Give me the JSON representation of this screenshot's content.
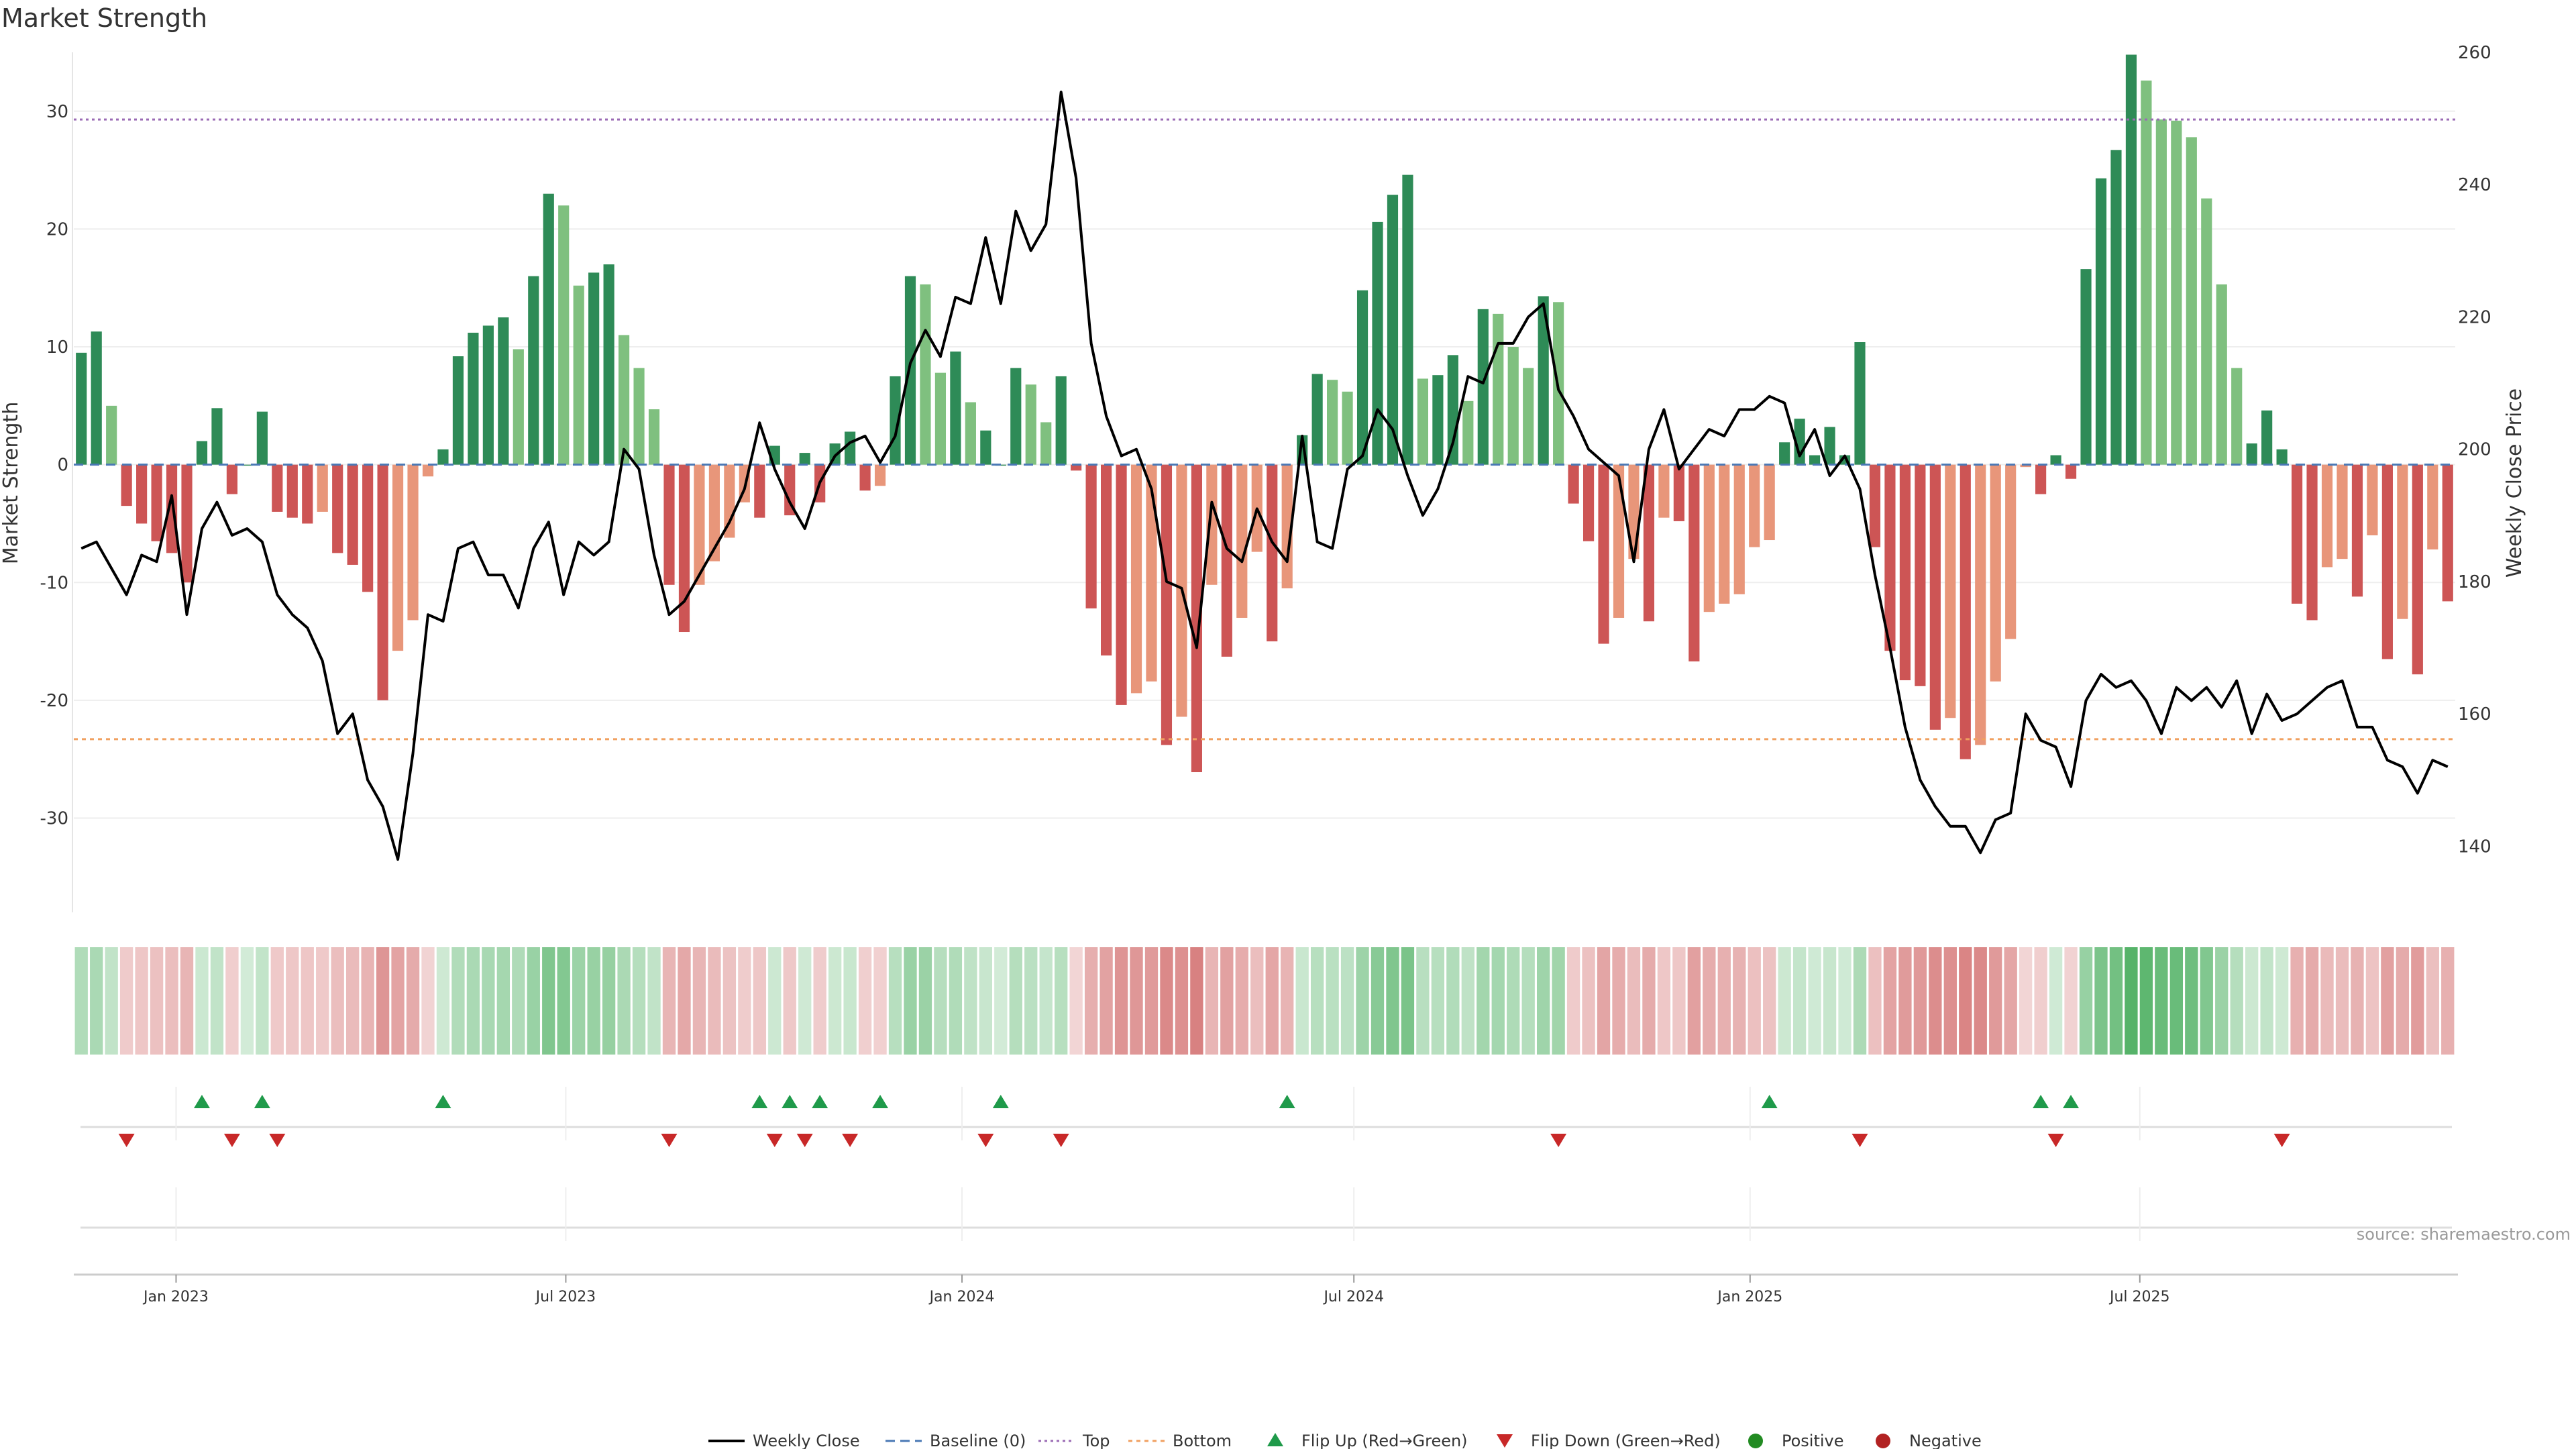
{
  "chart_data": {
    "type": "bar",
    "title": "Market Strength",
    "ylabel_left": "Market Strength",
    "ylabel_right": "Weekly Close Price",
    "source": "source: sharemaestro.com",
    "ylim_left": [
      -38,
      35
    ],
    "ylim_right": [
      130,
      260
    ],
    "yticks_left": [
      "-30",
      "-20",
      "-10",
      "0",
      "10",
      "20",
      "30"
    ],
    "yticks_right": [
      "140",
      "160",
      "180",
      "200",
      "220",
      "240",
      "260"
    ],
    "top_level": 29.3,
    "bottom_level": -23.3,
    "start_date": "2022-11-18",
    "x_ticks": [
      {
        "label": "Jan 2023",
        "date": "2023-01-01"
      },
      {
        "label": "Jul 2023",
        "date": "2023-07-01"
      },
      {
        "label": "Jan 2024",
        "date": "2024-01-01"
      },
      {
        "label": "Jul 2024",
        "date": "2024-07-01"
      },
      {
        "label": "Jan 2025",
        "date": "2025-01-01"
      },
      {
        "label": "Jul 2025",
        "date": "2025-07-01"
      }
    ],
    "strength": [
      9.5,
      11.3,
      5,
      -3.5,
      -5,
      -6.5,
      -7.5,
      -10,
      2,
      4.8,
      -2.5,
      0,
      4.5,
      -4,
      -4.5,
      -5,
      -4,
      -7.5,
      -8.5,
      -10.8,
      -20,
      -15.8,
      -13.2,
      -1,
      1.3,
      9.2,
      11.2,
      11.8,
      12.5,
      9.8,
      16,
      23,
      22,
      15.2,
      16.3,
      17,
      11,
      8.2,
      4.7,
      -10.2,
      -14.2,
      -10.2,
      -8.2,
      -6.2,
      -3.2,
      -4.5,
      1.6,
      -4.3,
      1,
      -3.2,
      1.8,
      2.8,
      -2.2,
      -1.8,
      7.5,
      16,
      15.3,
      7.8,
      9.6,
      5.3,
      2.9,
      0,
      8.2,
      6.8,
      3.6,
      7.5,
      -0.5,
      -12.2,
      -16.2,
      -20.4,
      -19.4,
      -18.4,
      -23.8,
      -21.4,
      -26.1,
      -10.2,
      -16.3,
      -13,
      -7.4,
      -15,
      -10.5,
      2.5,
      7.7,
      7.2,
      6.2,
      14.8,
      20.6,
      22.9,
      24.6,
      7.3,
      7.6,
      9.3,
      5.4,
      13.2,
      12.8,
      10,
      8.2,
      14.3,
      13.8,
      -3.3,
      -6.5,
      -15.2,
      -13,
      -8,
      -13.3,
      -4.5,
      -4.8,
      -16.7,
      -12.5,
      -11.8,
      -11,
      -7,
      -6.4,
      1.9,
      3.9,
      0.8,
      3.2,
      0.8,
      10.4,
      -7,
      -15.8,
      -18.3,
      -18.8,
      -22.5,
      -21.5,
      -25,
      -23.8,
      -18.4,
      -14.8,
      -0.2,
      -2.5,
      0.8,
      -1.2,
      16.6,
      24.3,
      26.7,
      34.8,
      32.6,
      29.3,
      29.2,
      27.8,
      22.6,
      15.3,
      8.2,
      1.8,
      4.6,
      1.3,
      -11.8,
      -13.2,
      -8.7,
      -8,
      -11.2,
      -6,
      -16.5,
      -13.1,
      -17.8,
      -7.2,
      -11.6
    ],
    "price": [
      185,
      186,
      182,
      178,
      184,
      183,
      193,
      175,
      188,
      192,
      187,
      188,
      186,
      178,
      175,
      173,
      168,
      157,
      160,
      150,
      146,
      138,
      154,
      175,
      174,
      185,
      186,
      181,
      181,
      176,
      185,
      189,
      178,
      186,
      184,
      186,
      200,
      197,
      184,
      175,
      177,
      181,
      185,
      189,
      194,
      204,
      197,
      192,
      188,
      195,
      199,
      201,
      202,
      198,
      202,
      213,
      218,
      214,
      223,
      222,
      232,
      222,
      236,
      230,
      234,
      254,
      241,
      216,
      205,
      199,
      200,
      194,
      180,
      179,
      170,
      192,
      185,
      183,
      191,
      186,
      183,
      202,
      186,
      185,
      197,
      199,
      206,
      203,
      196,
      190,
      194,
      201,
      211,
      210,
      216,
      216,
      220,
      222,
      209,
      205,
      200,
      198,
      196,
      183,
      200,
      206,
      197,
      200,
      203,
      202,
      206,
      206,
      208,
      207,
      199,
      203,
      196,
      199,
      194,
      181,
      170,
      158,
      150,
      146,
      143,
      143,
      139,
      144,
      145,
      160,
      156,
      155,
      149,
      162,
      166,
      164,
      165,
      162,
      157,
      164,
      162,
      164,
      161,
      165,
      157,
      163,
      159,
      160,
      162,
      164,
      165,
      158,
      158,
      153,
      152,
      148,
      153,
      152
    ],
    "flip_up": [
      8,
      12,
      24,
      45,
      47,
      49,
      53,
      61,
      80,
      112,
      130,
      132
    ],
    "flip_down": [
      3,
      10,
      13,
      39,
      46,
      48,
      51,
      60,
      65,
      98,
      118,
      131,
      146
    ],
    "colors": {
      "strong_pos": "#2e8b57",
      "weak_pos": "#7fc07f",
      "strong_neg": "#cd5555",
      "weak_neg": "#e8967a",
      "price_line": "#000000",
      "baseline": "#4a78b5",
      "top": "#9b6bb5",
      "bottom": "#f0a060",
      "flip_up": "#1f9a4a",
      "flip_down": "#c82828",
      "positive": "#228b22",
      "negative": "#b22222"
    },
    "legend": [
      {
        "label": "Weekly Close",
        "kind": "line"
      },
      {
        "label": "Baseline (0)",
        "kind": "dash"
      },
      {
        "label": "Top",
        "kind": "dot"
      },
      {
        "label": "Bottom",
        "kind": "dot2"
      },
      {
        "label": "Flip Up (Red→Green)",
        "kind": "tri-up"
      },
      {
        "label": "Flip Down (Green→Red)",
        "kind": "tri-down"
      },
      {
        "label": "Positive",
        "kind": "circle-pos"
      },
      {
        "label": "Negative",
        "kind": "circle-neg"
      }
    ],
    "legend_position": "bottom-center",
    "grid": true
  }
}
